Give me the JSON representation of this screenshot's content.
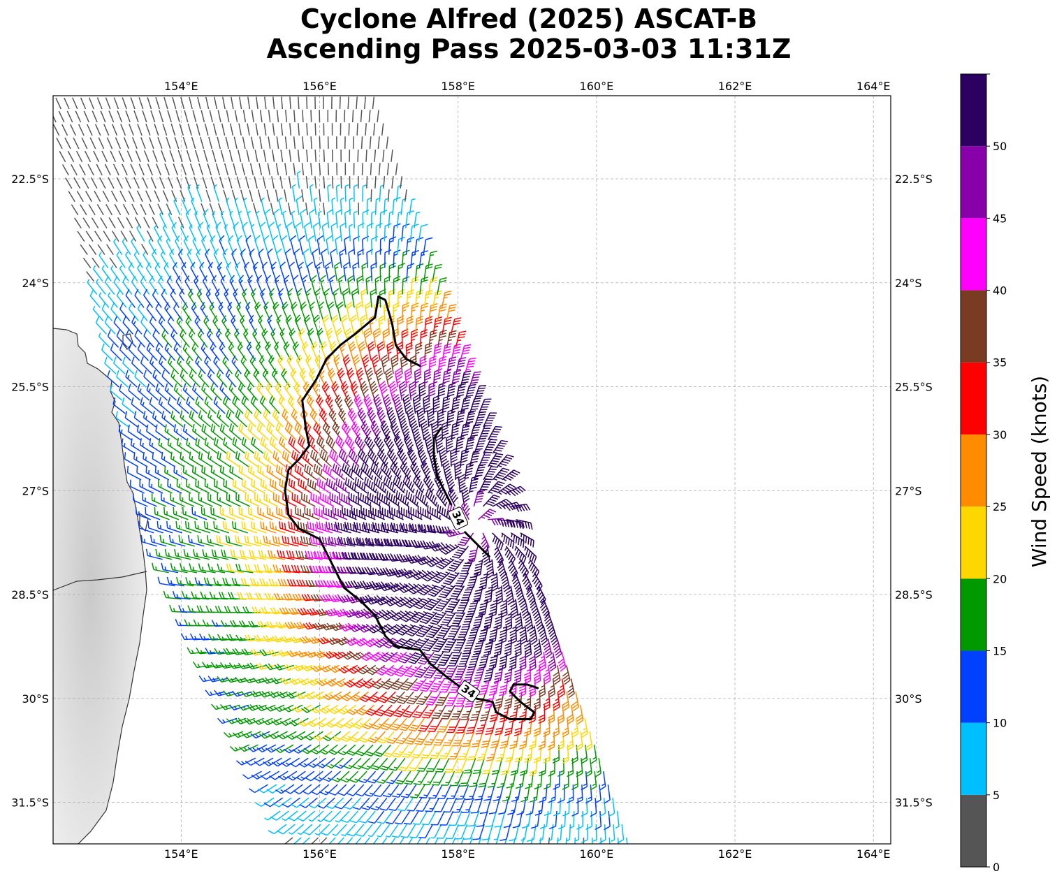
{
  "title": {
    "line1": "Cyclone Alfred (2025) ASCAT-B",
    "line2": "Ascending Pass 2025-03-03 11:31Z"
  },
  "colors": {
    "bins": [
      "#555555",
      "#00bfff",
      "#0040ff",
      "#009900",
      "#ffd700",
      "#ff8c00",
      "#ff0000",
      "#7a3b23",
      "#ff00ff",
      "#8800aa",
      "#2b0060"
    ],
    "contour": "#000000",
    "coastline": "#333333",
    "land": "#dddddd"
  },
  "chart_data": {
    "type": "wind-barb-map",
    "xlabels_top": [
      "154°E",
      "156°E",
      "158°E",
      "160°E",
      "162°E",
      "164°E"
    ],
    "xlabels_bottom": [
      "154°E",
      "156°E",
      "158°E",
      "160°E",
      "162°E",
      "164°E"
    ],
    "ylabels_left": [
      "22.5°S",
      "24°S",
      "25.5°S",
      "27°S",
      "28.5°S",
      "30°S",
      "31.5°S"
    ],
    "ylabels_right": [
      "22.5°S",
      "24°S",
      "25.5°S",
      "27°S",
      "28.5°S",
      "30°S",
      "31.5°S"
    ],
    "lon_ticks": [
      154,
      156,
      158,
      160,
      162,
      164
    ],
    "lat_ticks": [
      -22.5,
      -24,
      -25.5,
      -27,
      -28.5,
      -30,
      -31.5
    ],
    "xlim": [
      152.15,
      164.25
    ],
    "ylim": [
      -32.1,
      -21.3
    ],
    "grid": true,
    "colorbar": {
      "label": "Wind Speed (knots)",
      "bounds": [
        0,
        5,
        10,
        15,
        20,
        25,
        30,
        35,
        40,
        45,
        50,
        55
      ],
      "tick_labels": [
        "0",
        "5",
        "10",
        "15",
        "20",
        "25",
        "30",
        "35",
        "40",
        "45",
        "50"
      ]
    },
    "contour": {
      "level": 34,
      "label": "34",
      "label_positions": [
        [
          158.0,
          -27.4
        ],
        [
          158.15,
          -29.9
        ]
      ],
      "segments": [
        [
          [
            156.85,
            -24.2
          ],
          [
            156.95,
            -24.25
          ],
          [
            157.05,
            -24.6
          ],
          [
            157.1,
            -24.9
          ],
          [
            157.25,
            -25.1
          ],
          [
            157.45,
            -25.2
          ]
        ],
        [
          [
            156.85,
            -24.2
          ],
          [
            156.8,
            -24.5
          ],
          [
            156.5,
            -24.75
          ],
          [
            156.3,
            -24.9
          ],
          [
            156.1,
            -25.1
          ],
          [
            155.95,
            -25.4
          ],
          [
            155.75,
            -25.7
          ],
          [
            155.8,
            -26.1
          ],
          [
            155.85,
            -26.35
          ],
          [
            155.7,
            -26.55
          ],
          [
            155.55,
            -26.7
          ],
          [
            155.5,
            -27.0
          ],
          [
            155.55,
            -27.35
          ],
          [
            155.7,
            -27.55
          ],
          [
            156.0,
            -27.7
          ],
          [
            156.1,
            -27.9
          ],
          [
            156.25,
            -28.2
          ],
          [
            156.35,
            -28.4
          ],
          [
            156.6,
            -28.6
          ],
          [
            156.8,
            -28.8
          ],
          [
            156.95,
            -29.1
          ],
          [
            157.1,
            -29.25
          ],
          [
            157.45,
            -29.3
          ],
          [
            157.6,
            -29.5
          ],
          [
            157.85,
            -29.7
          ],
          [
            158.05,
            -29.85
          ]
        ],
        [
          [
            158.25,
            -30.0
          ],
          [
            158.5,
            -30.05
          ],
          [
            158.55,
            -30.2
          ],
          [
            158.75,
            -30.3
          ],
          [
            159.05,
            -30.3
          ],
          [
            159.1,
            -30.2
          ],
          [
            158.9,
            -30.05
          ],
          [
            158.75,
            -29.9
          ],
          [
            158.8,
            -29.8
          ],
          [
            159.0,
            -29.8
          ],
          [
            159.15,
            -29.85
          ]
        ],
        [
          [
            157.75,
            -26.1
          ],
          [
            157.65,
            -26.25
          ],
          [
            157.65,
            -26.5
          ],
          [
            157.7,
            -26.8
          ],
          [
            157.8,
            -27.0
          ],
          [
            157.9,
            -27.2
          ]
        ],
        [
          [
            158.1,
            -27.6
          ],
          [
            158.3,
            -27.8
          ],
          [
            158.45,
            -27.95
          ]
        ]
      ]
    }
  }
}
